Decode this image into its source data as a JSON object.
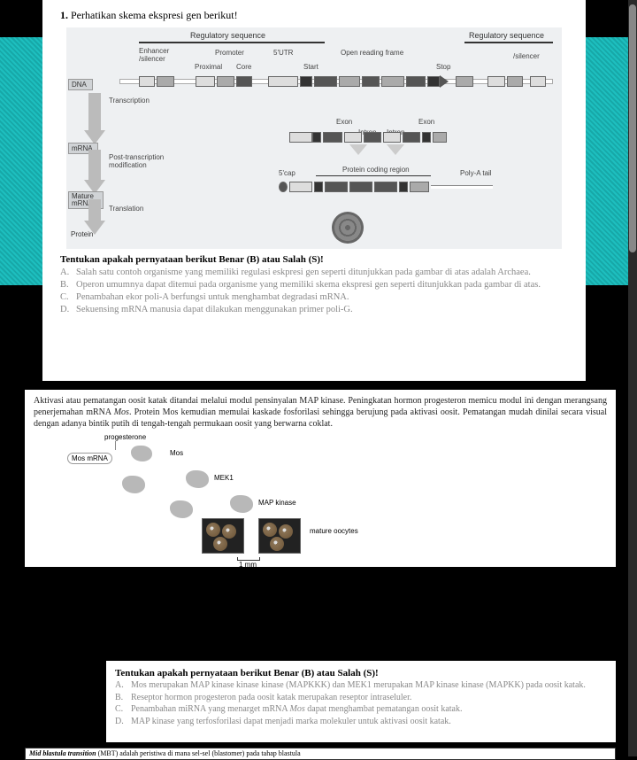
{
  "q1": {
    "number": "1.",
    "text": "Perhatikan skema ekspresi gen berikut!",
    "prompt": "Tentukan apakah pernyataan berikut Benar (B) atau Salah (S)!",
    "options": [
      {
        "l": "A.",
        "t": "Salah satu contoh organisme yang memiliki regulasi eskpresi gen seperti ditunjukkan pada gambar di atas adalah Archaea."
      },
      {
        "l": "B.",
        "t": "Operon umumnya dapat ditemui pada organisme yang memiliki skema ekspresi gen seperti ditunjukkan pada gambar di atas."
      },
      {
        "l": "C.",
        "t": "Penambahan ekor poli-A berfungsi untuk menghambat degradasi mRNA."
      },
      {
        "l": "D.",
        "t": "Sekuensing mRNA manusia dapat dilakukan menggunakan primer poli-G."
      }
    ],
    "diagram": {
      "reg_seq": "Regulatory sequence",
      "enhancer": "Enhancer /silencer",
      "promoter": "Promoter",
      "utr5": "5'UTR",
      "proximal": "Proximal",
      "core": "Core",
      "orf": "Open reading frame",
      "start": "Start",
      "stop": "Stop",
      "silencer": "/silencer",
      "dna": "DNA",
      "transcription": "Transcription",
      "exon": "Exon",
      "intron": "Intron",
      "mrna": "mRNA",
      "ptm": "Post-transcription modification",
      "cap5": "5'cap",
      "pcr": "Protein coding region",
      "polya": "Poly-A tail",
      "mature": "Mature mRNA",
      "translation": "Translation",
      "protein": "Protein"
    }
  },
  "q2": {
    "para": "Aktivasi atau pematangan oosit katak ditandai melalui modul pensinyalan MAP kinase. Peningkatan hormon progesteron memicu modul ini dengan merangsang penerjemahan mRNA <i>Mos</i>. Protein Mos kemudian memulai kaskade fosforilasi sehingga berujung pada aktivasi oosit. Pematangan mudah dinilai secara visual dengan adanya bintik putih di tengah-tengah permukaan oosit yang berwarna coklat.",
    "cascade": {
      "progesterone": "progesterone",
      "mos_mrna": "Mos mRNA",
      "mos": "Mos",
      "mek1": "MEK1",
      "mapk": "MAP kinase",
      "mature": "mature oocytes",
      "scale": "1 mm"
    }
  },
  "q3": {
    "prompt": "Tentukan apakah pernyataan berikut Benar (B) atau Salah (S)!",
    "options": [
      {
        "l": "A.",
        "t": "Mos merupakan MAP kinase kinase kinase (MAPKKK) dan MEK1 merupakan MAP kinase kinase (MAPKK) pada oosit katak."
      },
      {
        "l": "B.",
        "t": "Reseptor hormon progesteron pada oosit katak merupakan reseptor intraseluler."
      },
      {
        "l": "C.",
        "t": "Penambahan miRNA yang menarget mRNA <i>Mos</i> dapat menghambat pematangan oosit katak."
      },
      {
        "l": "D.",
        "t": "MAP kinase yang terfosforilasi dapat menjadi marka molekuler untuk aktivasi oosit katak."
      }
    ]
  },
  "mbt": "<i>Mid blastula transition</i> (MBT) adalah peristiwa di mana sel-sel (blastomer) pada tahap blastula"
}
